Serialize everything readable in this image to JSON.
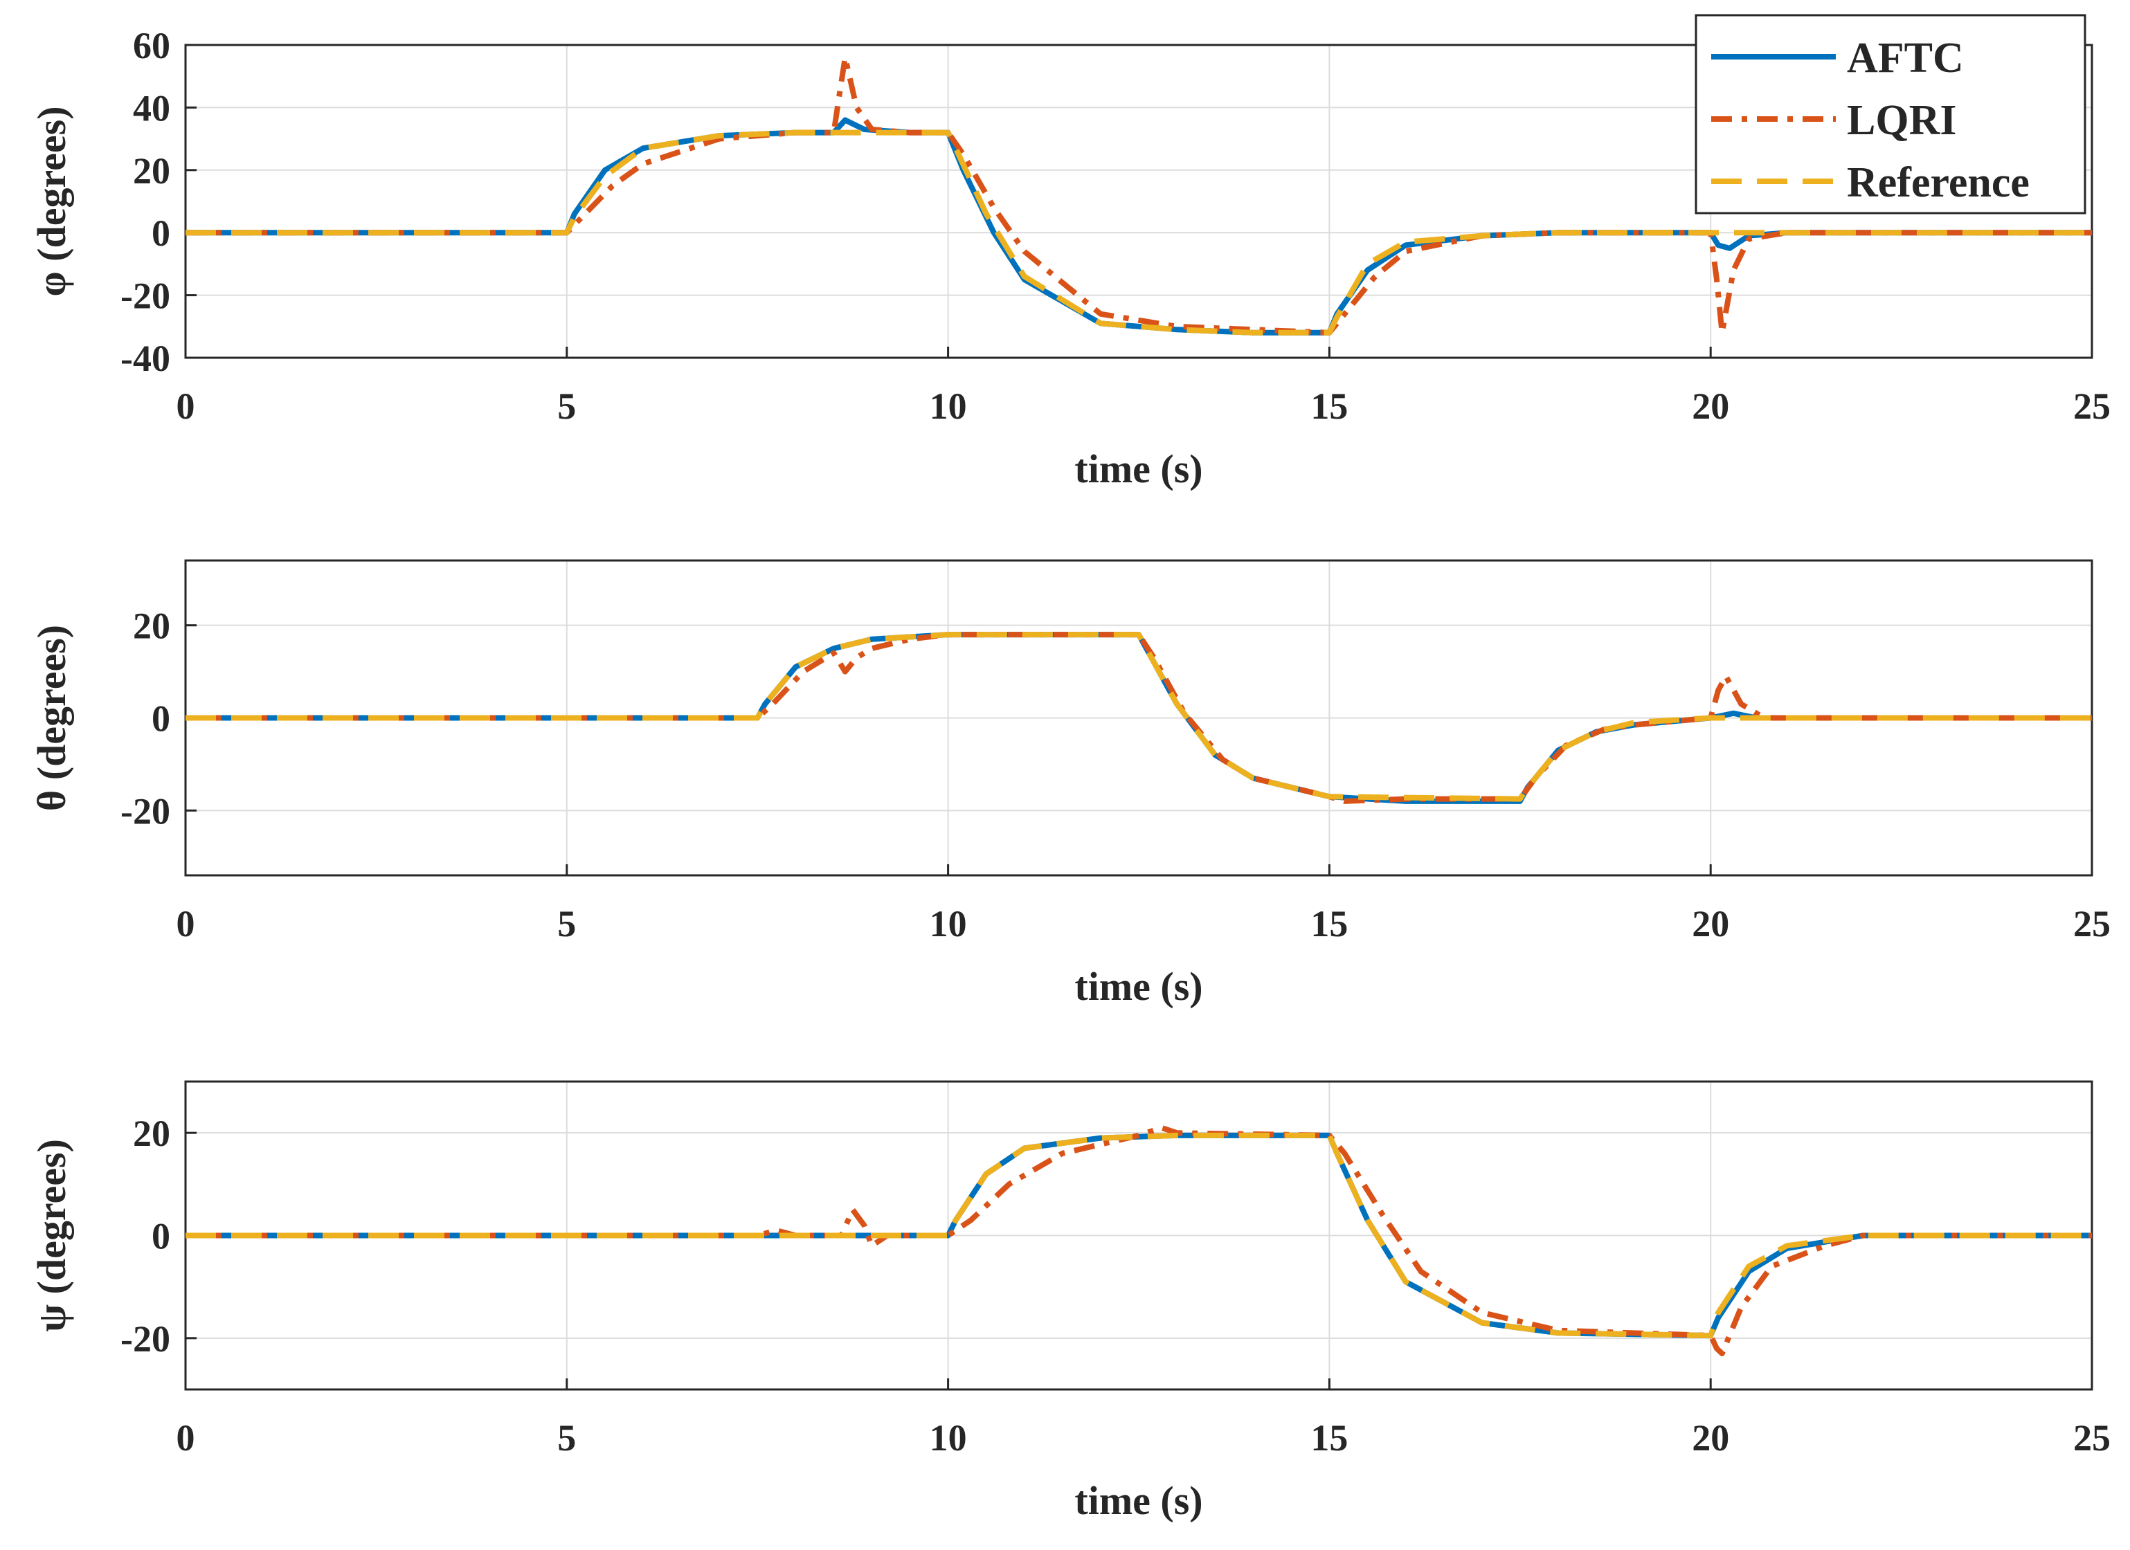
{
  "chart_data": [
    {
      "type": "line",
      "xlabel": "time (s)",
      "ylabel": "φ (degrees)",
      "xlim": [
        0,
        25
      ],
      "ylim": [
        -40,
        60
      ],
      "xticks": [
        0,
        5,
        10,
        15,
        20,
        25
      ],
      "yticks": [
        -40,
        -20,
        0,
        20,
        40,
        60
      ],
      "grid": true,
      "legend": {
        "location": "top-right",
        "entries": [
          "AFTC",
          "LQRI",
          "Reference"
        ]
      },
      "series": [
        {
          "name": "AFTC",
          "color": "#0072BD",
          "style": "solid",
          "x": [
            0,
            5.0,
            5.1,
            5.5,
            6.0,
            7.0,
            8.0,
            8.5,
            8.65,
            8.9,
            9.5,
            10.0,
            10.2,
            10.6,
            11.0,
            12.0,
            13.0,
            14.0,
            15.0,
            15.1,
            15.5,
            16.0,
            17.0,
            18.0,
            19.0,
            20.0,
            20.1,
            20.25,
            20.5,
            21.0,
            25.0
          ],
          "y": [
            0,
            0,
            6,
            20,
            27,
            31,
            32,
            32,
            36,
            33,
            32,
            32,
            20,
            0,
            -15,
            -29,
            -31,
            -32,
            -32,
            -26,
            -12,
            -4,
            -1,
            0,
            0,
            0,
            -4,
            -5,
            -1,
            0,
            0
          ]
        },
        {
          "name": "LQRI",
          "color": "#D95319",
          "style": "dashdot",
          "x": [
            0,
            5.0,
            5.2,
            5.6,
            6.0,
            7.0,
            8.0,
            8.5,
            8.58,
            8.65,
            8.8,
            9.0,
            9.5,
            10.0,
            10.2,
            10.6,
            11.0,
            12.0,
            13.0,
            14.0,
            15.0,
            15.2,
            15.6,
            16.0,
            17.0,
            18.0,
            19.0,
            20.0,
            20.08,
            20.15,
            20.3,
            20.5,
            21.0,
            25.0
          ],
          "y": [
            0,
            0,
            5,
            15,
            22,
            30,
            32,
            32,
            45,
            56,
            40,
            33,
            32,
            32,
            25,
            8,
            -6,
            -26,
            -30,
            -31,
            -32,
            -26,
            -14,
            -6,
            -1,
            0,
            0,
            0,
            -15,
            -32,
            -12,
            -2,
            0,
            0
          ]
        },
        {
          "name": "Reference",
          "color": "#EDB120",
          "style": "dashed",
          "x": [
            0,
            5.0,
            5.1,
            5.5,
            6.0,
            7.0,
            8.0,
            9.0,
            10.0,
            10.1,
            10.5,
            11.0,
            12.0,
            13.0,
            14.0,
            15.0,
            15.1,
            15.5,
            16.0,
            17.0,
            18.0,
            19.0,
            25.0
          ],
          "y": [
            0,
            0,
            5,
            18,
            27,
            31,
            32,
            32,
            32,
            27,
            6,
            -14,
            -29,
            -31,
            -32,
            -32,
            -27,
            -10,
            -3,
            -1,
            0,
            0,
            0
          ]
        }
      ]
    },
    {
      "type": "line",
      "xlabel": "time (s)",
      "ylabel": "θ (degrees)",
      "xlim": [
        0,
        25
      ],
      "ylim": [
        -34,
        34
      ],
      "xticks": [
        0,
        5,
        10,
        15,
        20,
        25
      ],
      "yticks": [
        -20,
        0,
        20
      ],
      "grid": true,
      "series": [
        {
          "name": "AFTC",
          "color": "#0072BD",
          "style": "solid",
          "x": [
            0,
            7.5,
            7.6,
            8.0,
            8.5,
            9.0,
            10.0,
            11.0,
            12.5,
            12.6,
            13.0,
            13.5,
            14.0,
            15.0,
            16.0,
            17.5,
            17.6,
            18.0,
            18.5,
            19.0,
            20.0,
            20.3,
            20.6,
            25.0
          ],
          "y": [
            0,
            0,
            3,
            11,
            15,
            17,
            18,
            18,
            18,
            15,
            3,
            -8,
            -13,
            -17,
            -18,
            -18,
            -15,
            -7,
            -3,
            -1.5,
            0,
            1,
            0,
            0
          ]
        },
        {
          "name": "LQRI",
          "color": "#D95319",
          "style": "dashdot",
          "x": [
            0,
            7.5,
            7.7,
            8.1,
            8.5,
            8.65,
            8.8,
            9.0,
            9.5,
            10.0,
            11.0,
            12.5,
            12.7,
            13.1,
            13.6,
            14.0,
            15.0,
            15.2,
            16.0,
            17.5,
            17.7,
            18.1,
            18.6,
            19.0,
            20.0,
            20.1,
            20.2,
            20.4,
            20.7,
            25.0
          ],
          "y": [
            0,
            0,
            3,
            10,
            14,
            10,
            13,
            15,
            17,
            18,
            18,
            18,
            13,
            1,
            -9,
            -13,
            -17,
            -18,
            -17.5,
            -17.5,
            -13,
            -6,
            -2.5,
            -1.5,
            0,
            6,
            9,
            3,
            0,
            0
          ]
        },
        {
          "name": "Reference",
          "color": "#EDB120",
          "style": "dashed",
          "x": [
            0,
            7.5,
            7.6,
            8.0,
            8.5,
            9.0,
            10.0,
            12.5,
            12.6,
            13.0,
            13.5,
            14.0,
            15.0,
            17.5,
            17.6,
            18.0,
            18.5,
            19.0,
            20.0,
            25.0
          ],
          "y": [
            0,
            0,
            3,
            11,
            15,
            17,
            18,
            18,
            15,
            3,
            -8,
            -13,
            -17,
            -17.5,
            -15,
            -7,
            -3,
            -1,
            0,
            0
          ]
        }
      ]
    },
    {
      "type": "line",
      "xlabel": "time (s)",
      "ylabel": "ψ (degrees)",
      "xlim": [
        0,
        25
      ],
      "ylim": [
        -30,
        30
      ],
      "xticks": [
        0,
        5,
        10,
        15,
        20,
        25
      ],
      "yticks": [
        -20,
        0,
        20
      ],
      "grid": true,
      "series": [
        {
          "name": "AFTC",
          "color": "#0072BD",
          "style": "solid",
          "x": [
            0,
            10.0,
            10.1,
            10.5,
            11.0,
            12.0,
            13.0,
            15.0,
            15.1,
            15.5,
            16.0,
            17.0,
            18.0,
            20.0,
            20.1,
            20.5,
            21.0,
            22.0,
            25.0
          ],
          "y": [
            0,
            0,
            3,
            12,
            17,
            19,
            19.5,
            19.5,
            16,
            3,
            -9,
            -17,
            -19,
            -19.5,
            -16,
            -7,
            -2.5,
            0,
            0
          ]
        },
        {
          "name": "LQRI",
          "color": "#D95319",
          "style": "dashdot",
          "x": [
            0,
            7.5,
            7.75,
            8.0,
            8.6,
            8.75,
            8.9,
            9.0,
            9.2,
            10.0,
            10.3,
            10.8,
            11.5,
            12.5,
            12.8,
            13.0,
            15.0,
            15.2,
            15.7,
            16.2,
            17.0,
            18.0,
            20.0,
            20.08,
            20.15,
            20.4,
            20.8,
            21.5,
            22.0,
            25.0
          ],
          "y": [
            0,
            0,
            1,
            0,
            0,
            5,
            2,
            -2,
            0,
            0,
            3,
            10,
            16,
            19.5,
            21,
            20,
            19.5,
            16,
            4,
            -7,
            -15,
            -18.5,
            -19.5,
            -22,
            -23,
            -14,
            -6,
            -2,
            0,
            0
          ]
        },
        {
          "name": "Reference",
          "color": "#EDB120",
          "style": "dashed",
          "x": [
            0,
            10.0,
            10.1,
            10.5,
            11.0,
            12.0,
            13.0,
            15.0,
            15.1,
            15.5,
            16.0,
            17.0,
            18.0,
            20.0,
            20.1,
            20.5,
            21.0,
            22.0,
            25.0
          ],
          "y": [
            0,
            0,
            3,
            12,
            17,
            19,
            19.5,
            19.5,
            16,
            3,
            -9,
            -17,
            -19,
            -19.5,
            -15,
            -6,
            -2,
            0,
            0
          ]
        }
      ]
    }
  ]
}
